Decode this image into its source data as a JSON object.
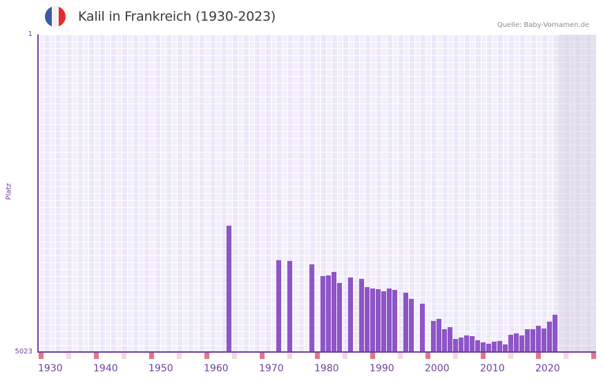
{
  "header": {
    "title": "Kalil in Frankreich (1930-2023)",
    "source": "Quelle: Baby-Vornamen.de",
    "flag_colors": [
      "#3c5aa8",
      "#f2f2f4",
      "#e52a2f"
    ]
  },
  "colors": {
    "bar": "#8e55c6",
    "axis": "#6b3fa0",
    "tick_decade": "#e57580",
    "tick_half": "#f4d6df"
  },
  "chart_data": {
    "type": "bar",
    "title": "Kalil in Frankreich (1930-2023)",
    "xlabel": "",
    "ylabel": "Platz",
    "ylim": [
      5023,
      1
    ],
    "y_inverted": true,
    "y_ticks": [
      "1",
      "5023"
    ],
    "x_ticks": [
      "1930",
      "1940",
      "1950",
      "1960",
      "1970",
      "1980",
      "1990",
      "2000",
      "2010",
      "2020"
    ],
    "x_range": [
      1930,
      2030
    ],
    "future_shaded_from": 2024,
    "grid": true,
    "legend": null,
    "categories": [
      1964,
      1973,
      1975,
      1979,
      1981,
      1982,
      1983,
      1984,
      1986,
      1988,
      1989,
      1990,
      1991,
      1992,
      1993,
      1994,
      1996,
      1997,
      1999,
      2001,
      2002,
      2003,
      2004,
      2005,
      2006,
      2007,
      2008,
      2009,
      2010,
      2011,
      2012,
      2013,
      2014,
      2015,
      2016,
      2017,
      2018,
      2019,
      2020,
      2021,
      2022,
      2023
    ],
    "values": [
      3024,
      3570,
      3581,
      3636,
      3821,
      3810,
      3756,
      3930,
      3843,
      3865,
      3996,
      4018,
      4029,
      4061,
      4018,
      4040,
      4083,
      4181,
      4258,
      4531,
      4498,
      4662,
      4629,
      4815,
      4793,
      4760,
      4771,
      4837,
      4869,
      4891,
      4858,
      4847,
      4902,
      4750,
      4728,
      4760,
      4662,
      4662,
      4607,
      4651,
      4542,
      4433
    ]
  },
  "axis": {
    "y_top_label": "1",
    "y_bottom_label": "5023",
    "y_title": "Platz"
  }
}
